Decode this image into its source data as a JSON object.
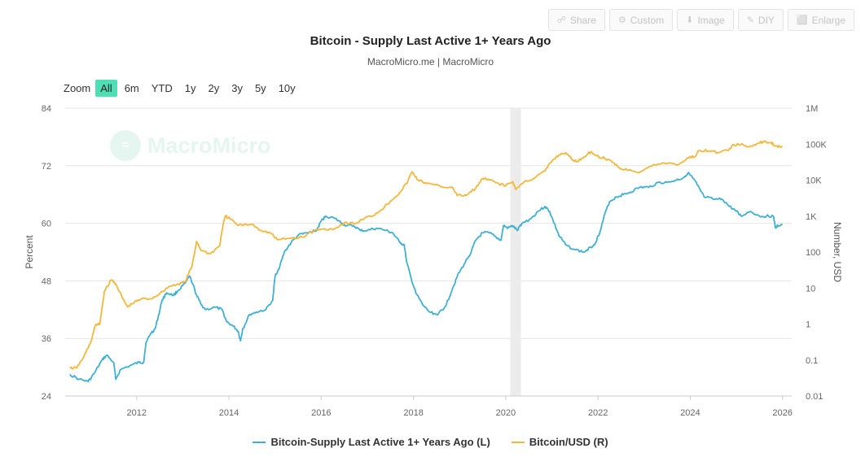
{
  "toolbar": {
    "share": "Share",
    "custom": "Custom",
    "image": "Image",
    "diy": "DIY",
    "enlarge": "Enlarge"
  },
  "zoom": {
    "label": "Zoom",
    "options": [
      "All",
      "6m",
      "YTD",
      "1y",
      "2y",
      "3y",
      "5y",
      "10y"
    ],
    "active": "All"
  },
  "watermark": "MacroMicro",
  "chart_data": {
    "type": "line",
    "title": "Bitcoin - Supply Last Active 1+ Years Ago",
    "subtitle": "MacroMicro.me | MacroMicro",
    "ylabel_left": "Percent",
    "ylabel_right": "Number, USD",
    "x_ticks": [
      "2012",
      "2014",
      "2016",
      "2018",
      "2020",
      "2022",
      "2024",
      "2026"
    ],
    "y_left": {
      "ticks": [
        "24",
        "36",
        "48",
        "60",
        "72",
        "84"
      ],
      "range": [
        24,
        84
      ]
    },
    "y_right": {
      "scale": "log",
      "ticks": [
        "0.01",
        "0.1",
        "1",
        "10",
        "100",
        "1K",
        "10K",
        "100K",
        "1M"
      ],
      "range": [
        0.01,
        1000000
      ]
    },
    "shaded_period": {
      "from": 2020.1,
      "to": 2020.33
    },
    "series": [
      {
        "name": "Bitcoin-Supply Last Active 1+ Years Ago (L)",
        "axis": "left",
        "color": "#3fb0d4",
        "points": [
          [
            2010.55,
            28.5
          ],
          [
            2010.75,
            27.5
          ],
          [
            2010.95,
            27.0
          ],
          [
            2011.1,
            29.0
          ],
          [
            2011.25,
            31.5
          ],
          [
            2011.35,
            32.5
          ],
          [
            2011.5,
            31.0
          ],
          [
            2011.55,
            27.5
          ],
          [
            2011.65,
            29.5
          ],
          [
            2011.9,
            30.5
          ],
          [
            2012.05,
            31.0
          ],
          [
            2012.15,
            31.0
          ],
          [
            2012.2,
            35.0
          ],
          [
            2012.3,
            37.0
          ],
          [
            2012.4,
            38.0
          ],
          [
            2012.48,
            41.0
          ],
          [
            2012.55,
            44.0
          ],
          [
            2012.65,
            45.5
          ],
          [
            2012.8,
            45.0
          ],
          [
            2012.9,
            46.0
          ],
          [
            2013.05,
            47.5
          ],
          [
            2013.15,
            49.0
          ],
          [
            2013.3,
            45.0
          ],
          [
            2013.4,
            43.0
          ],
          [
            2013.5,
            42.0
          ],
          [
            2013.7,
            42.5
          ],
          [
            2013.85,
            42.0
          ],
          [
            2013.95,
            39.5
          ],
          [
            2014.1,
            38.5
          ],
          [
            2014.2,
            37.5
          ],
          [
            2014.25,
            35.5
          ],
          [
            2014.3,
            38.0
          ],
          [
            2014.45,
            41.0
          ],
          [
            2014.6,
            41.5
          ],
          [
            2014.8,
            42.0
          ],
          [
            2014.95,
            44.0
          ],
          [
            2015.0,
            49.0
          ],
          [
            2015.1,
            51.0
          ],
          [
            2015.2,
            54.0
          ],
          [
            2015.35,
            56.0
          ],
          [
            2015.5,
            57.5
          ],
          [
            2015.7,
            58.0
          ],
          [
            2015.9,
            58.5
          ],
          [
            2016.0,
            60.5
          ],
          [
            2016.1,
            61.5
          ],
          [
            2016.3,
            61.0
          ],
          [
            2016.45,
            60.0
          ],
          [
            2016.55,
            59.5
          ],
          [
            2016.7,
            59.5
          ],
          [
            2016.85,
            58.5
          ],
          [
            2017.0,
            58.5
          ],
          [
            2017.2,
            59.0
          ],
          [
            2017.4,
            58.5
          ],
          [
            2017.55,
            58.0
          ],
          [
            2017.7,
            56.0
          ],
          [
            2017.8,
            55.5
          ],
          [
            2017.85,
            52.0
          ],
          [
            2017.95,
            48.5
          ],
          [
            2018.05,
            45.5
          ],
          [
            2018.2,
            43.0
          ],
          [
            2018.35,
            41.5
          ],
          [
            2018.5,
            41.0
          ],
          [
            2018.65,
            42.0
          ],
          [
            2018.75,
            44.0
          ],
          [
            2018.85,
            46.5
          ],
          [
            2018.95,
            49.0
          ],
          [
            2019.1,
            51.5
          ],
          [
            2019.25,
            54.0
          ],
          [
            2019.35,
            56.5
          ],
          [
            2019.5,
            58.0
          ],
          [
            2019.65,
            58.0
          ],
          [
            2019.8,
            57.0
          ],
          [
            2019.9,
            56.5
          ],
          [
            2019.95,
            59.5
          ],
          [
            2020.05,
            59.0
          ],
          [
            2020.15,
            59.5
          ],
          [
            2020.25,
            58.5
          ],
          [
            2020.35,
            60.0
          ],
          [
            2020.55,
            61.0
          ],
          [
            2020.7,
            62.5
          ],
          [
            2020.85,
            63.5
          ],
          [
            2020.95,
            62.5
          ],
          [
            2021.05,
            60.0
          ],
          [
            2021.15,
            57.5
          ],
          [
            2021.3,
            55.5
          ],
          [
            2021.5,
            54.5
          ],
          [
            2021.7,
            54.0
          ],
          [
            2021.85,
            55.0
          ],
          [
            2021.95,
            56.0
          ],
          [
            2022.05,
            58.5
          ],
          [
            2022.15,
            62.0
          ],
          [
            2022.25,
            64.5
          ],
          [
            2022.4,
            65.5
          ],
          [
            2022.55,
            66.0
          ],
          [
            2022.7,
            66.5
          ],
          [
            2022.9,
            67.5
          ],
          [
            2023.1,
            67.5
          ],
          [
            2023.3,
            68.5
          ],
          [
            2023.5,
            68.5
          ],
          [
            2023.7,
            69.0
          ],
          [
            2023.85,
            69.5
          ],
          [
            2023.95,
            70.5
          ],
          [
            2024.05,
            69.5
          ],
          [
            2024.15,
            68.0
          ],
          [
            2024.3,
            65.5
          ],
          [
            2024.5,
            65.0
          ],
          [
            2024.7,
            65.0
          ],
          [
            2024.85,
            63.5
          ],
          [
            2025.0,
            62.5
          ],
          [
            2025.1,
            61.5
          ],
          [
            2025.3,
            62.5
          ],
          [
            2025.5,
            61.5
          ],
          [
            2025.65,
            61.5
          ],
          [
            2025.8,
            61.5
          ],
          [
            2025.85,
            59.0
          ],
          [
            2025.9,
            59.5
          ],
          [
            2026.0,
            59.8
          ]
        ]
      },
      {
        "name": "Bitcoin/USD (R)",
        "axis": "right",
        "color": "#f3b73c",
        "points": [
          [
            2010.55,
            0.06
          ],
          [
            2010.7,
            0.06
          ],
          [
            2010.85,
            0.12
          ],
          [
            2011.0,
            0.3
          ],
          [
            2011.1,
            0.9
          ],
          [
            2011.2,
            1.0
          ],
          [
            2011.3,
            8.0
          ],
          [
            2011.45,
            17.0
          ],
          [
            2011.55,
            13.0
          ],
          [
            2011.7,
            5.0
          ],
          [
            2011.8,
            3.0
          ],
          [
            2011.95,
            4.0
          ],
          [
            2012.1,
            5.0
          ],
          [
            2012.3,
            5.0
          ],
          [
            2012.5,
            7.0
          ],
          [
            2012.7,
            11.0
          ],
          [
            2012.9,
            13.0
          ],
          [
            2013.05,
            15.0
          ],
          [
            2013.2,
            40.0
          ],
          [
            2013.3,
            200.0
          ],
          [
            2013.4,
            110.0
          ],
          [
            2013.6,
            90.0
          ],
          [
            2013.8,
            150.0
          ],
          [
            2013.85,
            400.0
          ],
          [
            2013.92,
            1000.0
          ],
          [
            2014.05,
            800.0
          ],
          [
            2014.2,
            550.0
          ],
          [
            2014.5,
            600.0
          ],
          [
            2014.7,
            400.0
          ],
          [
            2014.9,
            340.0
          ],
          [
            2015.05,
            220.0
          ],
          [
            2015.3,
            240.0
          ],
          [
            2015.6,
            260.0
          ],
          [
            2015.85,
            400.0
          ],
          [
            2016.0,
            430.0
          ],
          [
            2016.3,
            450.0
          ],
          [
            2016.5,
            650.0
          ],
          [
            2016.75,
            620.0
          ],
          [
            2016.95,
            900.0
          ],
          [
            2017.1,
            1000.0
          ],
          [
            2017.3,
            1500.0
          ],
          [
            2017.5,
            2600.0
          ],
          [
            2017.7,
            4500.0
          ],
          [
            2017.85,
            8000.0
          ],
          [
            2017.97,
            17000.0
          ],
          [
            2018.1,
            10000.0
          ],
          [
            2018.3,
            8000.0
          ],
          [
            2018.6,
            6500.0
          ],
          [
            2018.85,
            6300.0
          ],
          [
            2018.95,
            3700.0
          ],
          [
            2019.15,
            3800.0
          ],
          [
            2019.35,
            6000.0
          ],
          [
            2019.5,
            11000.0
          ],
          [
            2019.65,
            10000.0
          ],
          [
            2019.85,
            8000.0
          ],
          [
            2020.0,
            7000.0
          ],
          [
            2020.15,
            9000.0
          ],
          [
            2020.22,
            5500.0
          ],
          [
            2020.4,
            9000.0
          ],
          [
            2020.6,
            11000.0
          ],
          [
            2020.85,
            18000.0
          ],
          [
            2021.0,
            34000.0
          ],
          [
            2021.15,
            50000.0
          ],
          [
            2021.3,
            58000.0
          ],
          [
            2021.45,
            36000.0
          ],
          [
            2021.55,
            33000.0
          ],
          [
            2021.7,
            45000.0
          ],
          [
            2021.85,
            62000.0
          ],
          [
            2021.97,
            47000.0
          ],
          [
            2022.15,
            40000.0
          ],
          [
            2022.35,
            30000.0
          ],
          [
            2022.5,
            20000.0
          ],
          [
            2022.7,
            19500.0
          ],
          [
            2022.9,
            16500.0
          ],
          [
            2023.1,
            23000.0
          ],
          [
            2023.3,
            28000.0
          ],
          [
            2023.55,
            30000.0
          ],
          [
            2023.75,
            27000.0
          ],
          [
            2023.95,
            42000.0
          ],
          [
            2024.1,
            45000.0
          ],
          [
            2024.2,
            68000.0
          ],
          [
            2024.4,
            65000.0
          ],
          [
            2024.6,
            58000.0
          ],
          [
            2024.8,
            68000.0
          ],
          [
            2024.95,
            95000.0
          ],
          [
            2025.1,
            97000.0
          ],
          [
            2025.25,
            84000.0
          ],
          [
            2025.45,
            105000.0
          ],
          [
            2025.6,
            115000.0
          ],
          [
            2025.75,
            112000.0
          ],
          [
            2025.85,
            90000.0
          ],
          [
            2026.0,
            88000.0
          ]
        ]
      }
    ]
  }
}
